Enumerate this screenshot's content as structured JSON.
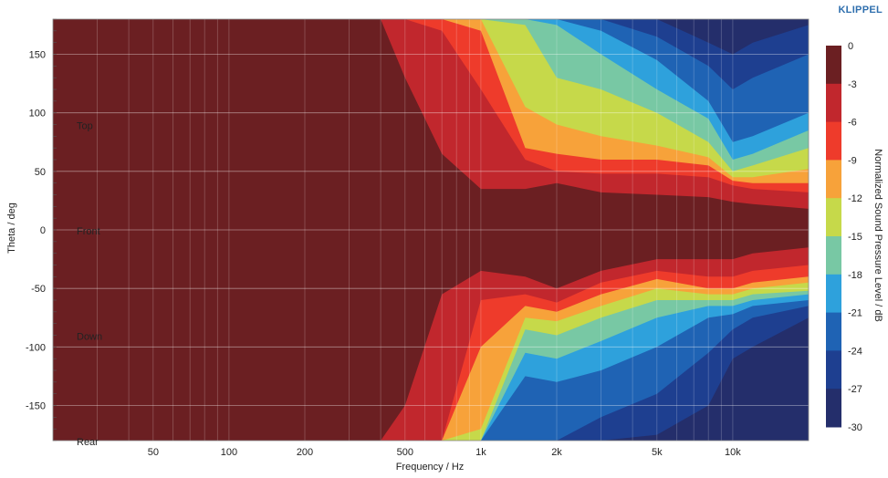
{
  "brand": "KLIPPEL",
  "chart_data": {
    "type": "heatmap",
    "subtype": "directivity-contour",
    "title": "",
    "xlabel": "Frequency / Hz",
    "ylabel": "Theta / deg",
    "x_scale": "log",
    "xlim": [
      20,
      20000
    ],
    "ylim": [
      -180,
      180
    ],
    "x_ticks": [
      50,
      100,
      200,
      500,
      1000,
      2000,
      5000,
      10000
    ],
    "x_tick_labels": [
      "50",
      "100",
      "200",
      "500",
      "1k",
      "2k",
      "5k",
      "10k"
    ],
    "y_ticks": [
      150,
      100,
      50,
      0,
      -50,
      -100,
      -150
    ],
    "y_tick_labels": [
      "150",
      "100",
      "50",
      "0",
      "-50",
      "-100",
      "-150"
    ],
    "grid": true,
    "annotations": [
      {
        "text": "Top",
        "theta": 90
      },
      {
        "text": "Front",
        "theta": 0
      },
      {
        "text": "Down",
        "theta": -90
      },
      {
        "text": "Rear",
        "theta": -180
      }
    ],
    "colorbar": {
      "label": "Normalized Sound Pressure Level / dB",
      "ticks": [
        0,
        -3,
        -6,
        -9,
        -12,
        -15,
        -18,
        -21,
        -24,
        -27,
        -30
      ],
      "tick_labels": [
        "0",
        "-3",
        "-6",
        "-9",
        "-12",
        "-15",
        "-18",
        "-21",
        "-24",
        "-27",
        "-30"
      ],
      "levels": [
        {
          "range": [
            -3,
            0
          ],
          "color": "#6b1f22"
        },
        {
          "range": [
            -6,
            -3
          ],
          "color": "#c1272d"
        },
        {
          "range": [
            -9,
            -6
          ],
          "color": "#ee3b2b"
        },
        {
          "range": [
            -12,
            -9
          ],
          "color": "#f7a23a"
        },
        {
          "range": [
            -15,
            -12
          ],
          "color": "#c6d94a"
        },
        {
          "range": [
            -18,
            -15
          ],
          "color": "#78c8a4"
        },
        {
          "range": [
            -21,
            -18
          ],
          "color": "#2ea1dc"
        },
        {
          "range": [
            -24,
            -21
          ],
          "color": "#1f63b4"
        },
        {
          "range": [
            -27,
            -24
          ],
          "color": "#1e3f90"
        },
        {
          "range": [
            -30,
            -27
          ],
          "color": "#242e6b"
        }
      ]
    },
    "band_edges_db": [
      -3,
      -6,
      -9,
      -12,
      -15,
      -18,
      -21,
      -24,
      -27
    ],
    "contours_upper": {
      "theta_at_freq_hz": [
        20,
        400,
        500,
        700,
        1000,
        1500,
        2000,
        3000,
        5000,
        8000,
        10000,
        12000,
        20000
      ],
      "levels": [
        {
          "db": -3,
          "theta": [
            180,
            180,
            130,
            65,
            35,
            35,
            40,
            32,
            30,
            28,
            24,
            22,
            18
          ]
        },
        {
          "db": -6,
          "theta": [
            180,
            180,
            180,
            170,
            120,
            60,
            50,
            48,
            48,
            45,
            38,
            35,
            32
          ]
        },
        {
          "db": -9,
          "theta": [
            180,
            180,
            180,
            180,
            170,
            70,
            65,
            60,
            60,
            55,
            42,
            40,
            40
          ]
        },
        {
          "db": -12,
          "theta": [
            180,
            180,
            180,
            180,
            180,
            105,
            90,
            80,
            72,
            62,
            45,
            45,
            52
          ]
        },
        {
          "db": -15,
          "theta": [
            180,
            180,
            180,
            180,
            180,
            175,
            130,
            120,
            100,
            75,
            50,
            55,
            70
          ]
        },
        {
          "db": -18,
          "theta": [
            180,
            180,
            180,
            180,
            180,
            180,
            175,
            150,
            120,
            95,
            60,
            65,
            85
          ]
        },
        {
          "db": -21,
          "theta": [
            180,
            180,
            180,
            180,
            180,
            180,
            180,
            170,
            145,
            110,
            75,
            80,
            100
          ]
        },
        {
          "db": -24,
          "theta": [
            180,
            180,
            180,
            180,
            180,
            180,
            180,
            180,
            165,
            140,
            120,
            130,
            150
          ]
        },
        {
          "db": -27,
          "theta": [
            180,
            180,
            180,
            180,
            180,
            180,
            180,
            180,
            180,
            160,
            150,
            160,
            175
          ]
        }
      ]
    },
    "contours_lower": {
      "theta_at_freq_hz": [
        20,
        400,
        500,
        700,
        1000,
        1500,
        2000,
        3000,
        5000,
        8000,
        10000,
        12000,
        20000
      ],
      "levels": [
        {
          "db": -3,
          "theta": [
            -180,
            -180,
            -150,
            -55,
            -35,
            -40,
            -50,
            -35,
            -25,
            -25,
            -25,
            -20,
            -15
          ]
        },
        {
          "db": -6,
          "theta": [
            -180,
            -180,
            -180,
            -180,
            -60,
            -55,
            -62,
            -45,
            -35,
            -40,
            -40,
            -35,
            -30
          ]
        },
        {
          "db": -9,
          "theta": [
            -180,
            -180,
            -180,
            -180,
            -100,
            -65,
            -70,
            -55,
            -42,
            -50,
            -50,
            -45,
            -40
          ]
        },
        {
          "db": -12,
          "theta": [
            -180,
            -180,
            -180,
            -180,
            -170,
            -75,
            -78,
            -65,
            -50,
            -55,
            -55,
            -50,
            -45
          ]
        },
        {
          "db": -15,
          "theta": [
            -180,
            -180,
            -180,
            -180,
            -180,
            -85,
            -90,
            -75,
            -60,
            -60,
            -60,
            -55,
            -52
          ]
        },
        {
          "db": -18,
          "theta": [
            -180,
            -180,
            -180,
            -180,
            -180,
            -105,
            -110,
            -95,
            -75,
            -65,
            -65,
            -60,
            -55
          ]
        },
        {
          "db": -21,
          "theta": [
            -180,
            -180,
            -180,
            -180,
            -180,
            -125,
            -130,
            -120,
            -100,
            -75,
            -72,
            -65,
            -60
          ]
        },
        {
          "db": -24,
          "theta": [
            -180,
            -180,
            -180,
            -180,
            -180,
            -180,
            -180,
            -160,
            -140,
            -105,
            -85,
            -75,
            -65
          ]
        },
        {
          "db": -27,
          "theta": [
            -180,
            -180,
            -180,
            -180,
            -180,
            -180,
            -180,
            -180,
            -175,
            -150,
            -110,
            -100,
            -75
          ]
        }
      ]
    }
  }
}
